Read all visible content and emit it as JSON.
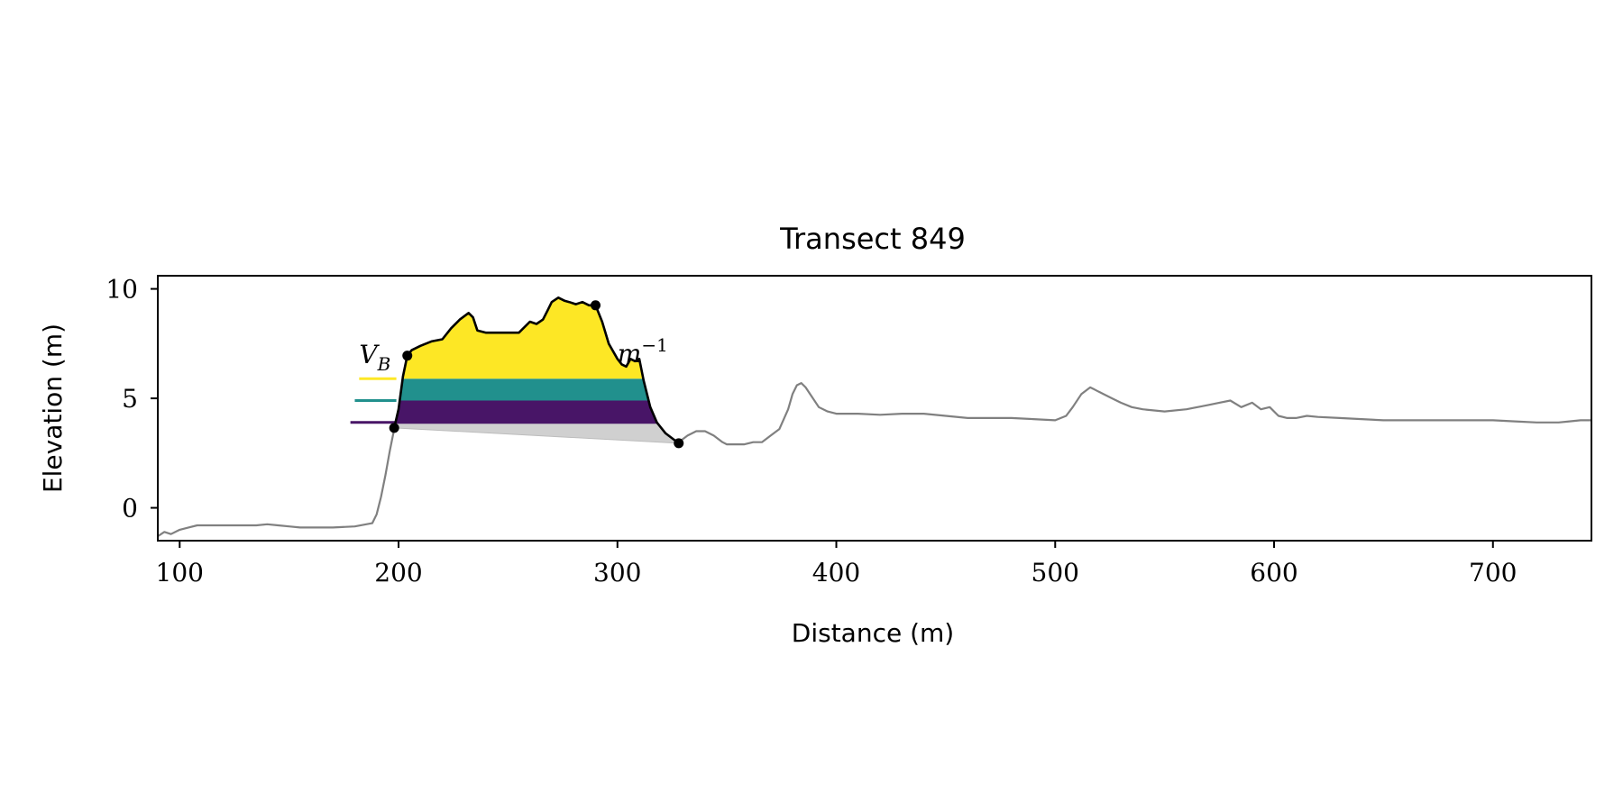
{
  "chart_data": {
    "type": "area",
    "title": "Transect 849",
    "xlabel": "Distance (m)",
    "ylabel": "Elevation (m)",
    "xlim": [
      90,
      745
    ],
    "ylim": [
      -1.5,
      10.6
    ],
    "xticks": [
      100,
      200,
      300,
      400,
      500,
      600,
      700
    ],
    "yticks": [
      0,
      5,
      10
    ],
    "grid": false,
    "colors": {
      "profile": "#808080",
      "dune_outline": "#000000",
      "base_fill": "#d0d0d0",
      "band_low": "#481567",
      "band_mid": "#21908d",
      "band_high": "#fde725",
      "points": "#000000"
    },
    "series": [
      {
        "kind": "line",
        "x": [
          90,
          93,
          96,
          100,
          104,
          108,
          112,
          118,
          125,
          130,
          135,
          140,
          145,
          150,
          155,
          160,
          170,
          180,
          188,
          190,
          192,
          194,
          196,
          198
        ],
        "y": [
          -1.3,
          -1.1,
          -1.2,
          -1.0,
          -0.9,
          -0.8,
          -0.8,
          -0.8,
          -0.8,
          -0.8,
          -0.8,
          -0.75,
          -0.8,
          -0.85,
          -0.9,
          -0.9,
          -0.9,
          -0.85,
          -0.7,
          -0.3,
          0.5,
          1.5,
          2.6,
          3.6
        ]
      },
      {
        "kind": "line",
        "x": [
          328,
          332,
          336,
          340,
          344,
          348,
          350,
          354,
          358,
          362,
          366,
          370,
          374,
          378,
          380,
          382,
          384,
          386,
          388,
          392,
          396,
          400,
          410,
          420,
          430,
          440,
          450,
          460,
          470,
          480,
          490,
          500,
          505,
          508,
          512,
          516,
          518,
          520,
          522,
          526,
          530,
          535,
          540,
          550,
          560,
          570,
          575,
          580,
          585,
          590,
          594,
          598,
          602,
          606,
          610,
          615,
          620,
          630,
          640,
          650,
          660,
          670,
          680,
          690,
          700,
          710,
          720,
          730,
          735,
          740,
          745
        ],
        "y": [
          3.0,
          3.3,
          3.5,
          3.5,
          3.3,
          3.0,
          2.9,
          2.9,
          2.9,
          3.0,
          3.0,
          3.3,
          3.6,
          4.5,
          5.2,
          5.6,
          5.7,
          5.5,
          5.2,
          4.6,
          4.4,
          4.3,
          4.3,
          4.25,
          4.3,
          4.3,
          4.2,
          4.1,
          4.1,
          4.1,
          4.05,
          4.0,
          4.2,
          4.6,
          5.2,
          5.5,
          5.4,
          5.3,
          5.2,
          5.0,
          4.8,
          4.6,
          4.5,
          4.4,
          4.5,
          4.7,
          4.8,
          4.9,
          4.6,
          4.8,
          4.5,
          4.6,
          4.2,
          4.1,
          4.1,
          4.2,
          4.15,
          4.1,
          4.05,
          4.0,
          4.0,
          4.0,
          4.0,
          4.0,
          4.0,
          3.95,
          3.9,
          3.9,
          3.95,
          4.0,
          4.0
        ]
      },
      {
        "kind": "dune",
        "x": [
          198,
          200,
          202,
          204,
          206,
          210,
          215,
          220,
          224,
          228,
          232,
          234,
          236,
          240,
          245,
          250,
          255,
          260,
          263,
          266,
          268,
          270,
          273,
          276,
          278,
          281,
          284,
          287,
          290,
          293,
          296,
          300,
          302,
          304,
          306,
          308,
          310,
          312,
          315,
          318,
          322,
          328
        ],
        "y": [
          3.65,
          4.5,
          6.0,
          6.95,
          7.2,
          7.4,
          7.6,
          7.7,
          8.2,
          8.6,
          8.9,
          8.7,
          8.1,
          8.0,
          8.0,
          8.0,
          8.0,
          8.5,
          8.4,
          8.6,
          9.0,
          9.4,
          9.6,
          9.45,
          9.4,
          9.3,
          9.4,
          9.25,
          9.25,
          8.5,
          7.5,
          6.8,
          6.55,
          6.45,
          6.8,
          6.7,
          6.8,
          5.8,
          4.6,
          3.9,
          3.4,
          2.95
        ]
      }
    ],
    "bands": [
      {
        "level_low": 3.9,
        "level_high": 4.9,
        "color": "band_low",
        "marker_x_start": 178
      },
      {
        "level_low": 4.9,
        "level_high": 5.9,
        "color": "band_mid",
        "marker_x_start": 180
      },
      {
        "level_low": 5.9,
        "level_high": 10.6,
        "color": "band_high",
        "marker_x_start": 182
      }
    ],
    "base_line": {
      "x": [
        198,
        328
      ],
      "y": [
        3.65,
        2.95
      ]
    },
    "key_points": [
      {
        "x": 198,
        "y": 3.65
      },
      {
        "x": 204,
        "y": 6.95
      },
      {
        "x": 290,
        "y": 9.25
      },
      {
        "x": 328,
        "y": 2.95
      }
    ],
    "annotations": [
      {
        "text": "V",
        "sub": "B",
        "x": 182,
        "y": 6.6
      },
      {
        "text": "m",
        "sup": "−1",
        "x": 300,
        "y": 6.65
      }
    ]
  }
}
